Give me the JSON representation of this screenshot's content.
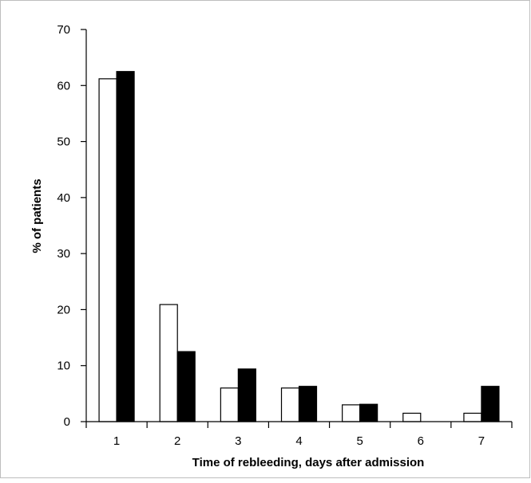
{
  "chart_data": {
    "type": "bar",
    "title": "",
    "xlabel": "Time of rebleeding, days after admission",
    "ylabel": "% of patients",
    "categories": [
      "1",
      "2",
      "3",
      "4",
      "5",
      "6",
      "7"
    ],
    "series": [
      {
        "fill": "#ffffff",
        "values": [
          61.2,
          20.9,
          6.0,
          6.0,
          3.0,
          1.5,
          1.5
        ]
      },
      {
        "fill": "#000000",
        "values": [
          62.5,
          12.5,
          9.4,
          6.3,
          3.1,
          0,
          6.3
        ]
      }
    ],
    "ylim": [
      0,
      70
    ],
    "yticks": [
      "0",
      "10",
      "20",
      "30",
      "40",
      "50",
      "60",
      "70"
    ],
    "grid": false,
    "legend": "none"
  }
}
